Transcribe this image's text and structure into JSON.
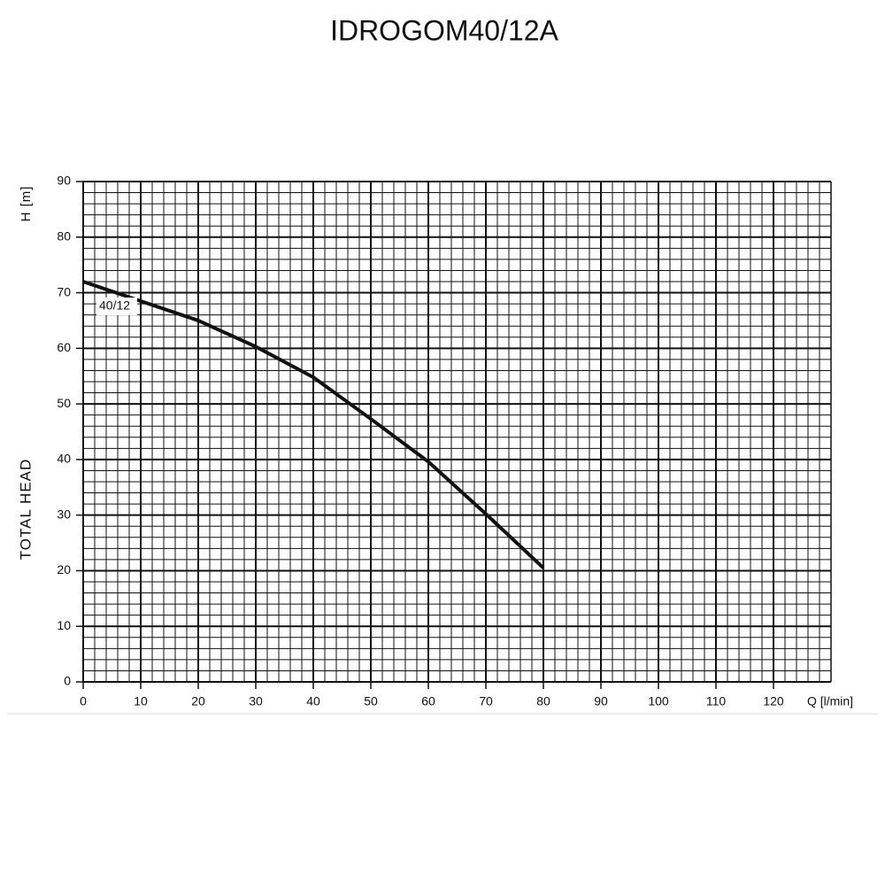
{
  "chart_data": {
    "type": "line",
    "title": "IDROGOM40/12A",
    "x_label": "Q [l/min]",
    "y_label": "TOTAL HEAD",
    "y_unit": "H [m]",
    "x": [
      0,
      10,
      20,
      30,
      40,
      50,
      60,
      70,
      80
    ],
    "series": [
      {
        "name": "40/12",
        "color": "#111111",
        "values": [
          72,
          68.5,
          65,
          60.3,
          54.8,
          47.3,
          39.6,
          30.2,
          20.5
        ]
      }
    ],
    "xlim": [
      0,
      130
    ],
    "xticks": [
      0,
      10,
      20,
      30,
      40,
      50,
      60,
      70,
      80,
      90,
      100,
      110,
      120
    ],
    "ylim": [
      0,
      90
    ],
    "yticks": [
      0,
      10,
      20,
      30,
      40,
      50,
      60,
      70,
      80,
      90
    ],
    "grid": true,
    "minor_divisions": 5
  }
}
